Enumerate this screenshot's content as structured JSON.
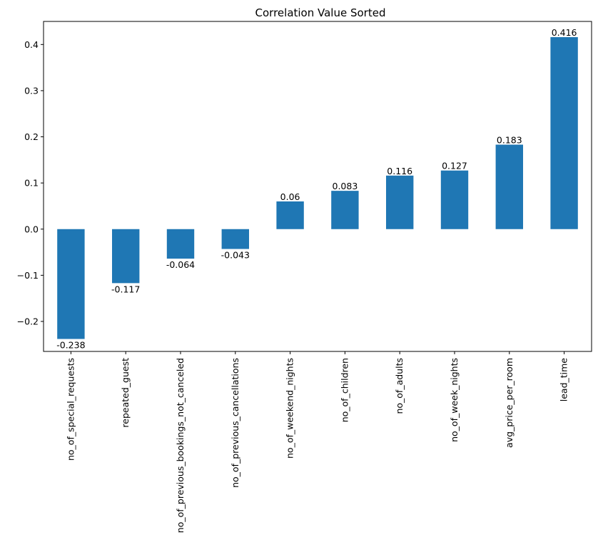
{
  "chart_data": {
    "type": "bar",
    "title": "Correlation Value Sorted",
    "xlabel": "",
    "ylabel": "",
    "categories": [
      "no_of_special_requests",
      "repeated_guest",
      "no_of_previous_bookings_not_canceled",
      "no_of_previous_cancellations",
      "no_of_weekend_nights",
      "no_of_children",
      "no_of_adults",
      "no_of_week_nights",
      "avg_price_per_room",
      "lead_time"
    ],
    "values": [
      -0.238,
      -0.117,
      -0.064,
      -0.043,
      0.06,
      0.083,
      0.116,
      0.127,
      0.183,
      0.416
    ],
    "data_labels": [
      "-0.238",
      "-0.117",
      "-0.064",
      "-0.043",
      "0.06",
      "0.083",
      "0.116",
      "0.127",
      "0.183",
      "0.416"
    ],
    "ylim": [
      -0.265,
      0.45
    ],
    "yticks": [
      -0.2,
      -0.1,
      0.0,
      0.1,
      0.2,
      0.3,
      0.4
    ],
    "ytick_labels": [
      "−0.2",
      "−0.1",
      "0.0",
      "0.1",
      "0.2",
      "0.3",
      "0.4"
    ],
    "bar_color": "#1f77b4",
    "grid": false,
    "legend": "none"
  }
}
